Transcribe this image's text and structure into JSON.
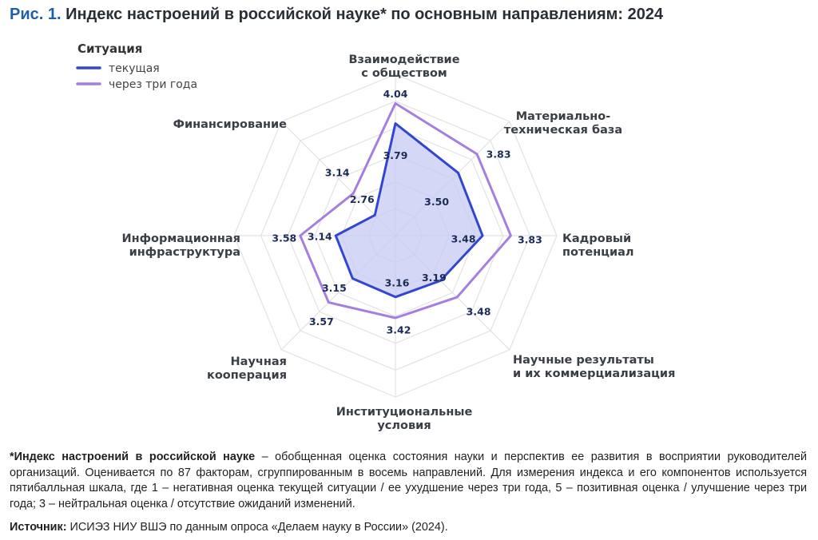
{
  "title": {
    "prefix": "Рис. 1.",
    "text": "Индекс настроений в российской науке* по основным направлениям: 2024"
  },
  "legend": {
    "title": "Ситуация",
    "items": [
      {
        "label": "текущая",
        "color": "#3246d3"
      },
      {
        "label": "через три года",
        "color": "#a57fe0"
      }
    ]
  },
  "chart_data": {
    "type": "radar",
    "categories": [
      [
        "Взаимодействие",
        "с обществом"
      ],
      [
        "Материально-",
        "техническая база"
      ],
      [
        "Кадровый",
        "потенциал"
      ],
      [
        "Научные результаты",
        "и их коммерциализация"
      ],
      [
        "Институциональные",
        "условия"
      ],
      [
        "Научная",
        "кооперация"
      ],
      [
        "Информационная",
        "инфраструктура"
      ],
      [
        "Финансирование"
      ]
    ],
    "series": [
      {
        "name": "текущая",
        "values": [
          3.79,
          3.5,
          3.48,
          3.19,
          3.16,
          3.15,
          3.14,
          2.76
        ]
      },
      {
        "name": "через три года",
        "values": [
          4.04,
          3.83,
          3.83,
          3.48,
          3.42,
          3.57,
          3.58,
          3.14
        ]
      }
    ],
    "value_labels": {
      "current": [
        "3.79",
        "3.50",
        "3.48",
        "3.19",
        "3.16",
        "3.15",
        "3.14",
        "2.76"
      ],
      "future": [
        "4.04",
        "3.83",
        "3.83",
        "3.48",
        "3.42",
        "3.57",
        "3.58",
        "3.14"
      ]
    },
    "rmin": 2.4,
    "rmax": 4.4,
    "grid_levels": 6,
    "grid": true,
    "colors": {
      "current_line": "#3246d3",
      "current_fill": "#c5cbf3",
      "future_line": "#a57fe0",
      "grid": "#e2e2e2"
    }
  },
  "footnote": {
    "bold": "*Индекс настроений в российской науке",
    "text": " – обобщенная оценка состояния науки и перспектив ее развития в восприятии руководителей организаций. Оценивается по 87 факторам, сгруппированным в восемь направлений. Для измерения индекса и его компонентов используется пятибалльная шкала, где 1 – негативная оценка текущей ситуации / ее ухудшение через три года, 5 – позитивная оценка / улучшение через три года; 3 – нейтральная оценка / отсутствие ожиданий изменений."
  },
  "source": {
    "label": "Источник:",
    "text": " ИСИЭЗ НИУ ВШЭ по данным опроса «Делаем науку в России» (2024)."
  }
}
